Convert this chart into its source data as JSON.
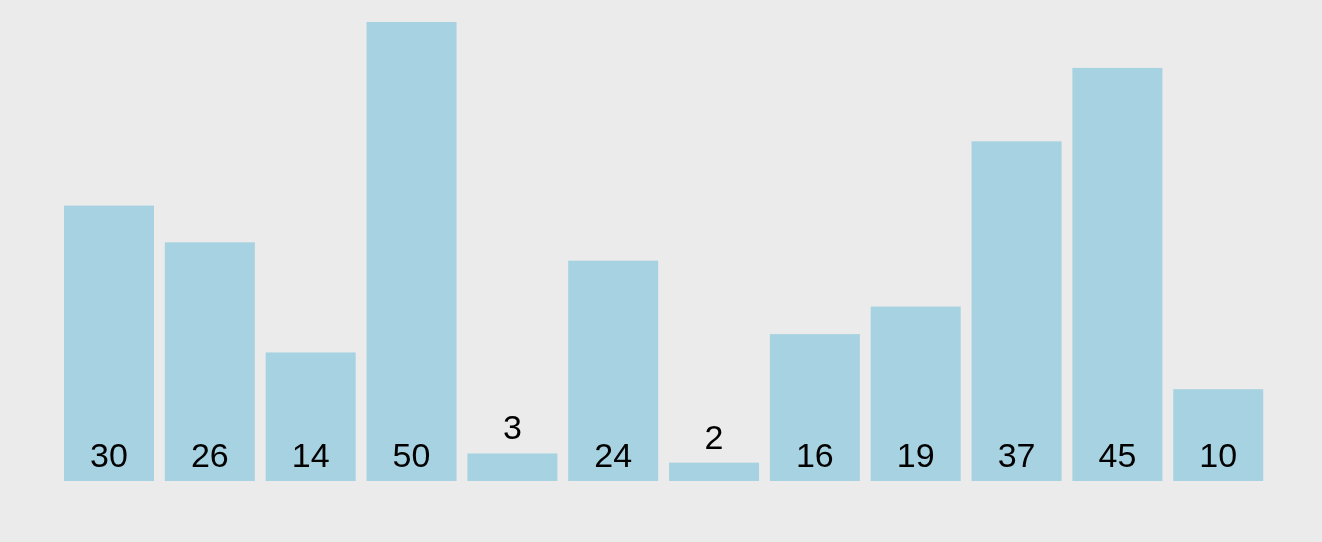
{
  "chart_data": {
    "type": "bar",
    "categories": [
      null,
      null,
      null,
      null,
      null,
      null,
      null,
      null,
      null,
      null,
      null,
      null
    ],
    "values": [
      30,
      26,
      14,
      50,
      3,
      24,
      2,
      16,
      19,
      37,
      45,
      10
    ],
    "color": "#a6d2e1",
    "data_labels": true
  }
}
